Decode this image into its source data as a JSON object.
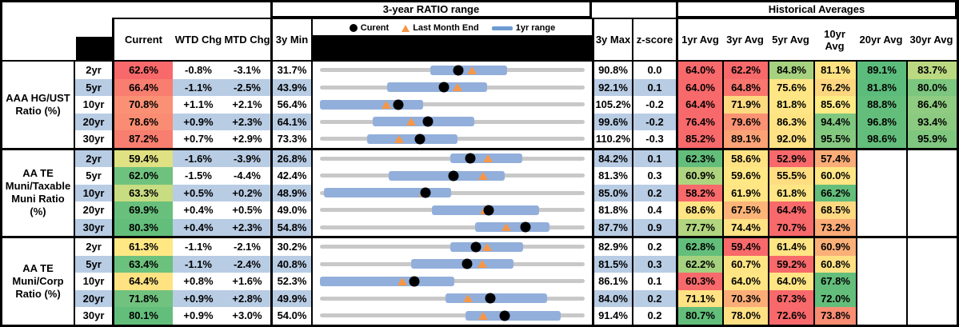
{
  "header": {
    "range_title": "3-year RATIO range",
    "averages_title": "Historical Averages",
    "col_current": "Current",
    "col_wtd": "WTD Chg",
    "col_mtd": "MTD Chg",
    "col_min": "3y Min",
    "col_max": "3y Max",
    "col_z": "z-score",
    "avg_cols": [
      "1yr Avg",
      "3yr Avg",
      "5yr Avg",
      "10yr Avg",
      "20yr Avg",
      "30yr Avg"
    ],
    "legend": {
      "current": "Curent",
      "last_month": "Last Month End",
      "range": "1yr range"
    }
  },
  "colors": {
    "row_alt": "#B8CCE4",
    "bar": "#92AFDB",
    "track": "#C8C8C8",
    "triangle": "#F79646",
    "dot": "#000000",
    "red": "#F8696B",
    "yellow": "#FFEB84",
    "green": "#63BE7B"
  },
  "chart_data": {
    "type": "table",
    "title": "Muni ratio dashboard: current levels, 3-year ratio range plots and historical averages",
    "groups": [
      {
        "label_lines": [
          "AAA HG/UST",
          "Ratio (%)"
        ],
        "rows": [
          {
            "tenor": "2yr",
            "current": {
              "v": "62.6%",
              "c": "#F8696B"
            },
            "wtd": "-0.8%",
            "mtd": "-3.1%",
            "min": "31.7%",
            "max": "90.8%",
            "z": "0.0",
            "chart": {
              "min": 31.7,
              "max": 90.8,
              "cur": 62.6,
              "lme": 65.7,
              "lo": 56.3,
              "hi": 73.5
            },
            "avgs": [
              {
                "v": "64.0%",
                "c": "#F8696B"
              },
              {
                "v": "62.2%",
                "c": "#F8696B"
              },
              {
                "v": "84.8%",
                "c": "#A6D27F"
              },
              {
                "v": "81.1%",
                "c": "#FFE383"
              },
              {
                "v": "89.1%",
                "c": "#5CBC7B"
              },
              {
                "v": "83.7%",
                "c": "#BBD980"
              }
            ]
          },
          {
            "tenor": "5yr",
            "current": {
              "v": "66.4%",
              "c": "#F87E70"
            },
            "wtd": "-1.1%",
            "mtd": "-2.5%",
            "min": "43.9%",
            "max": "92.1%",
            "z": "0.1",
            "chart": {
              "min": 43.9,
              "max": 92.1,
              "cur": 66.4,
              "lme": 68.9,
              "lo": 56.2,
              "hi": 74.4
            },
            "avgs": [
              {
                "v": "64.0%",
                "c": "#F8696B"
              },
              {
                "v": "64.8%",
                "c": "#F8766E"
              },
              {
                "v": "75.6%",
                "c": "#FFE584"
              },
              {
                "v": "76.2%",
                "c": "#FDD67F"
              },
              {
                "v": "81.8%",
                "c": "#5CBC7B"
              },
              {
                "v": "80.0%",
                "c": "#7CC67F"
              }
            ]
          },
          {
            "tenor": "10yr",
            "current": {
              "v": "70.8%",
              "c": "#FA9174"
            },
            "wtd": "+1.1%",
            "mtd": "+2.1%",
            "min": "56.4%",
            "max": "105.2%",
            "z": "-0.2",
            "chart": {
              "min": 56.4,
              "max": 105.2,
              "cur": 70.8,
              "lme": 68.7,
              "lo": 56.4,
              "hi": 75.4
            },
            "avgs": [
              {
                "v": "64.4%",
                "c": "#F8696B"
              },
              {
                "v": "71.9%",
                "c": "#FDD980"
              },
              {
                "v": "81.8%",
                "c": "#FFE684"
              },
              {
                "v": "85.6%",
                "c": "#FFEB84"
              },
              {
                "v": "88.8%",
                "c": "#63BE7B"
              },
              {
                "v": "86.4%",
                "c": "#8FCB80"
              }
            ]
          },
          {
            "tenor": "20yr",
            "current": {
              "v": "78.6%",
              "c": "#F98C72"
            },
            "wtd": "+0.9%",
            "mtd": "+2.3%",
            "min": "64.1%",
            "max": "99.6%",
            "z": "-0.2",
            "chart": {
              "min": 64.1,
              "max": 99.6,
              "cur": 78.6,
              "lme": 76.3,
              "lo": 71.2,
              "hi": 84.8
            },
            "avgs": [
              {
                "v": "76.4%",
                "c": "#F8696B"
              },
              {
                "v": "79.6%",
                "c": "#FA9273"
              },
              {
                "v": "86.3%",
                "c": "#FFE383"
              },
              {
                "v": "94.4%",
                "c": "#7EC77F"
              },
              {
                "v": "96.8%",
                "c": "#63BE7B"
              },
              {
                "v": "93.4%",
                "c": "#8BCA80"
              }
            ]
          },
          {
            "tenor": "30yr",
            "current": {
              "v": "87.2%",
              "c": "#F87E70"
            },
            "wtd": "+0.7%",
            "mtd": "+2.9%",
            "min": "73.3%",
            "max": "110.2%",
            "z": "-0.3",
            "chart": {
              "min": 73.3,
              "max": 110.2,
              "cur": 87.2,
              "lme": 84.3,
              "lo": 79.9,
              "hi": 92.5
            },
            "avgs": [
              {
                "v": "85.2%",
                "c": "#F8696B"
              },
              {
                "v": "89.1%",
                "c": "#FBA376"
              },
              {
                "v": "92.0%",
                "c": "#FFE283"
              },
              {
                "v": "95.5%",
                "c": "#84C97F"
              },
              {
                "v": "98.6%",
                "c": "#63BE7B"
              },
              {
                "v": "95.9%",
                "c": "#7FC77F"
              }
            ]
          }
        ]
      },
      {
        "label_lines": [
          "AA TE",
          "Muni/Taxable",
          "Muni Ratio",
          "(%)"
        ],
        "rows": [
          {
            "tenor": "2yr",
            "current": {
              "v": "59.4%",
              "c": "#DFE182"
            },
            "wtd": "-1.6%",
            "mtd": "-3.9%",
            "min": "26.8%",
            "max": "84.2%",
            "z": "0.1",
            "chart": {
              "min": 26.8,
              "max": 84.2,
              "cur": 59.4,
              "lme": 63.3,
              "lo": 55.1,
              "hi": 70.6
            },
            "avgs": [
              {
                "v": "62.3%",
                "c": "#63BE7B"
              },
              {
                "v": "58.6%",
                "c": "#FFE383"
              },
              {
                "v": "52.9%",
                "c": "#F8696B"
              },
              {
                "v": "57.4%",
                "c": "#FBAC77"
              },
              {
                "v": "",
                "c": ""
              },
              {
                "v": "",
                "c": ""
              }
            ]
          },
          {
            "tenor": "5yr",
            "current": {
              "v": "62.0%",
              "c": "#6FC27D"
            },
            "wtd": "-1.5%",
            "mtd": "-4.4%",
            "min": "42.4%",
            "max": "81.3%",
            "z": "0.3",
            "chart": {
              "min": 42.4,
              "max": 81.3,
              "cur": 62.0,
              "lme": 66.4,
              "lo": 52.5,
              "hi": 69.6
            },
            "avgs": [
              {
                "v": "60.9%",
                "c": "#AFD47F"
              },
              {
                "v": "59.6%",
                "c": "#FFE884"
              },
              {
                "v": "55.5%",
                "c": "#FEDC80"
              },
              {
                "v": "60.0%",
                "c": "#FFE684"
              },
              {
                "v": "",
                "c": ""
              },
              {
                "v": "",
                "c": ""
              }
            ]
          },
          {
            "tenor": "10yr",
            "current": {
              "v": "63.3%",
              "c": "#C8DC81"
            },
            "wtd": "+0.5%",
            "mtd": "+0.2%",
            "min": "48.9%",
            "max": "85.0%",
            "z": "0.2",
            "chart": {
              "min": 48.9,
              "max": 85.0,
              "cur": 63.3,
              "lme": 63.1,
              "lo": 49.4,
              "hi": 66.8
            },
            "avgs": [
              {
                "v": "58.2%",
                "c": "#F8696B"
              },
              {
                "v": "61.9%",
                "c": "#FFE583"
              },
              {
                "v": "61.8%",
                "c": "#FFE583"
              },
              {
                "v": "66.2%",
                "c": "#63BE7B"
              },
              {
                "v": "",
                "c": ""
              },
              {
                "v": "",
                "c": ""
              }
            ]
          },
          {
            "tenor": "20yr",
            "current": {
              "v": "69.9%",
              "c": "#68C07C"
            },
            "wtd": "+0.4%",
            "mtd": "+0.5%",
            "min": "49.0%",
            "max": "81.8%",
            "z": "0.4",
            "chart": {
              "min": 49.0,
              "max": 81.8,
              "cur": 69.9,
              "lme": 69.4,
              "lo": 62.9,
              "hi": 76.2
            },
            "avgs": [
              {
                "v": "68.6%",
                "c": "#FFE483"
              },
              {
                "v": "67.5%",
                "c": "#FCB479"
              },
              {
                "v": "64.4%",
                "c": "#F8696B"
              },
              {
                "v": "68.5%",
                "c": "#FED981"
              },
              {
                "v": "",
                "c": ""
              },
              {
                "v": "",
                "c": ""
              }
            ]
          },
          {
            "tenor": "30yr",
            "current": {
              "v": "80.3%",
              "c": "#63BE7B"
            },
            "wtd": "+0.4%",
            "mtd": "+2.3%",
            "min": "54.8%",
            "max": "87.7%",
            "z": "0.9",
            "chart": {
              "min": 54.8,
              "max": 87.7,
              "cur": 80.3,
              "lme": 78.0,
              "lo": 74.1,
              "hi": 83.3
            },
            "avgs": [
              {
                "v": "77.7%",
                "c": "#B2D57F"
              },
              {
                "v": "74.4%",
                "c": "#FFE283"
              },
              {
                "v": "70.7%",
                "c": "#F8696B"
              },
              {
                "v": "73.2%",
                "c": "#FBAC77"
              },
              {
                "v": "",
                "c": ""
              },
              {
                "v": "",
                "c": ""
              }
            ]
          }
        ]
      },
      {
        "label_lines": [
          "AA TE",
          "Muni/Corp",
          "Ratio (%)"
        ],
        "rows": [
          {
            "tenor": "2yr",
            "current": {
              "v": "61.3%",
              "c": "#FFE884"
            },
            "wtd": "-1.1%",
            "mtd": "-2.1%",
            "min": "30.2%",
            "max": "82.9%",
            "z": "0.2",
            "chart": {
              "min": 30.2,
              "max": 82.9,
              "cur": 61.3,
              "lme": 63.4,
              "lo": 56.2,
              "hi": 70.7
            },
            "avgs": [
              {
                "v": "62.8%",
                "c": "#63BE7B"
              },
              {
                "v": "59.4%",
                "c": "#F8696B"
              },
              {
                "v": "61.4%",
                "c": "#FFE583"
              },
              {
                "v": "60.9%",
                "c": "#FBB078"
              },
              {
                "v": "",
                "c": ""
              },
              {
                "v": "",
                "c": ""
              }
            ]
          },
          {
            "tenor": "5yr",
            "current": {
              "v": "63.4%",
              "c": "#6CC17D"
            },
            "wtd": "-1.1%",
            "mtd": "-2.4%",
            "min": "40.8%",
            "max": "81.5%",
            "z": "0.3",
            "chart": {
              "min": 40.8,
              "max": 81.5,
              "cur": 63.4,
              "lme": 65.8,
              "lo": 54.8,
              "hi": 70.5
            },
            "avgs": [
              {
                "v": "62.2%",
                "c": "#A5D17F"
              },
              {
                "v": "60.7%",
                "c": "#FFE483"
              },
              {
                "v": "59.2%",
                "c": "#F8696B"
              },
              {
                "v": "60.8%",
                "c": "#FFE083"
              },
              {
                "v": "",
                "c": ""
              },
              {
                "v": "",
                "c": ""
              }
            ]
          },
          {
            "tenor": "10yr",
            "current": {
              "v": "64.4%",
              "c": "#FFE383"
            },
            "wtd": "+0.8%",
            "mtd": "+1.6%",
            "min": "52.3%",
            "max": "86.1%",
            "z": "0.1",
            "chart": {
              "min": 52.3,
              "max": 86.1,
              "cur": 64.4,
              "lme": 62.8,
              "lo": 52.3,
              "hi": 69.5
            },
            "avgs": [
              {
                "v": "60.3%",
                "c": "#F8696B"
              },
              {
                "v": "64.0%",
                "c": "#FFE583"
              },
              {
                "v": "64.0%",
                "c": "#FFE583"
              },
              {
                "v": "67.8%",
                "c": "#63BE7B"
              },
              {
                "v": "",
                "c": ""
              },
              {
                "v": "",
                "c": ""
              }
            ]
          },
          {
            "tenor": "20yr",
            "current": {
              "v": "71.8%",
              "c": "#70C27E"
            },
            "wtd": "+0.9%",
            "mtd": "+2.8%",
            "min": "49.9%",
            "max": "84.0%",
            "z": "0.2",
            "chart": {
              "min": 49.9,
              "max": 84.0,
              "cur": 71.8,
              "lme": 69.0,
              "lo": 66.1,
              "hi": 79.2
            },
            "avgs": [
              {
                "v": "71.1%",
                "c": "#FFE283"
              },
              {
                "v": "70.3%",
                "c": "#FBAD77"
              },
              {
                "v": "67.3%",
                "c": "#F8696B"
              },
              {
                "v": "72.0%",
                "c": "#63BE7B"
              },
              {
                "v": "",
                "c": ""
              },
              {
                "v": "",
                "c": ""
              }
            ]
          },
          {
            "tenor": "30yr",
            "current": {
              "v": "80.1%",
              "c": "#63BE7B"
            },
            "wtd": "+0.9%",
            "mtd": "+3.0%",
            "min": "54.0%",
            "max": "91.4%",
            "z": "0.2",
            "chart": {
              "min": 54.0,
              "max": 91.4,
              "cur": 80.1,
              "lme": 77.1,
              "lo": 74.6,
              "hi": 88.0
            },
            "avgs": [
              {
                "v": "80.7%",
                "c": "#63BE7B"
              },
              {
                "v": "78.0%",
                "c": "#FFE083"
              },
              {
                "v": "72.6%",
                "c": "#F8696B"
              },
              {
                "v": "73.8%",
                "c": "#F98D72"
              },
              {
                "v": "",
                "c": ""
              },
              {
                "v": "",
                "c": ""
              }
            ]
          }
        ]
      }
    ]
  }
}
